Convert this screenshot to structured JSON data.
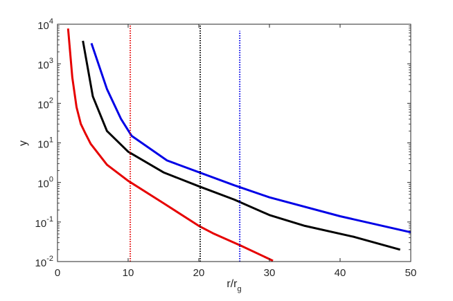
{
  "chart_data": {
    "type": "line",
    "title": "",
    "xlabel_main": "r/r",
    "xlabel_sub": "g",
    "ylabel": "y",
    "xlim": [
      0,
      50
    ],
    "ylim": [
      0.01,
      10000
    ],
    "y_scale": "log",
    "x_ticks": [
      0,
      10,
      20,
      30,
      40,
      50
    ],
    "x_tick_labels": [
      "0",
      "10",
      "20",
      "30",
      "40",
      "50"
    ],
    "y_ticks": [
      0.01,
      0.1,
      1,
      10,
      100,
      1000,
      10000
    ],
    "y_tick_labels": [
      {
        "base": "10",
        "exp": "-2"
      },
      {
        "base": "10",
        "exp": "-1"
      },
      {
        "base": "10",
        "exp": "0"
      },
      {
        "base": "10",
        "exp": "1"
      },
      {
        "base": "10",
        "exp": "2"
      },
      {
        "base": "10",
        "exp": "3"
      },
      {
        "base": "10",
        "exp": "4"
      }
    ],
    "grid": false,
    "legend": "none",
    "series": [
      {
        "color": "#e60000",
        "x": [
          1.5,
          2.1,
          2.7,
          3.3,
          3.9,
          4.7,
          7,
          10,
          15,
          20,
          22,
          26,
          30.5
        ],
        "y": [
          7800,
          450,
          80,
          30,
          18,
          9.5,
          2.8,
          1.1,
          0.3,
          0.08,
          0.052,
          0.025,
          0.0105
        ]
      },
      {
        "color": "#000000",
        "x": [
          3.6,
          5,
          7,
          10,
          15,
          20,
          25,
          30,
          35,
          42,
          48.5
        ],
        "y": [
          3800,
          150,
          20,
          6,
          1.8,
          0.8,
          0.37,
          0.15,
          0.08,
          0.042,
          0.02
        ]
      },
      {
        "color": "#0000e6",
        "x": [
          4.8,
          7,
          9,
          10.5,
          15.5,
          25,
          30,
          40,
          50
        ],
        "y": [
          3300,
          230,
          40,
          15,
          3.6,
          0.85,
          0.42,
          0.14,
          0.055
        ]
      }
    ],
    "vlines": [
      {
        "x": 10.3,
        "color": "#e60000",
        "y_top": 10000
      },
      {
        "x": 20.2,
        "color": "#000000",
        "y_top": 10000
      },
      {
        "x": 25.8,
        "color": "#0000e6",
        "y_top": 6800
      }
    ]
  }
}
